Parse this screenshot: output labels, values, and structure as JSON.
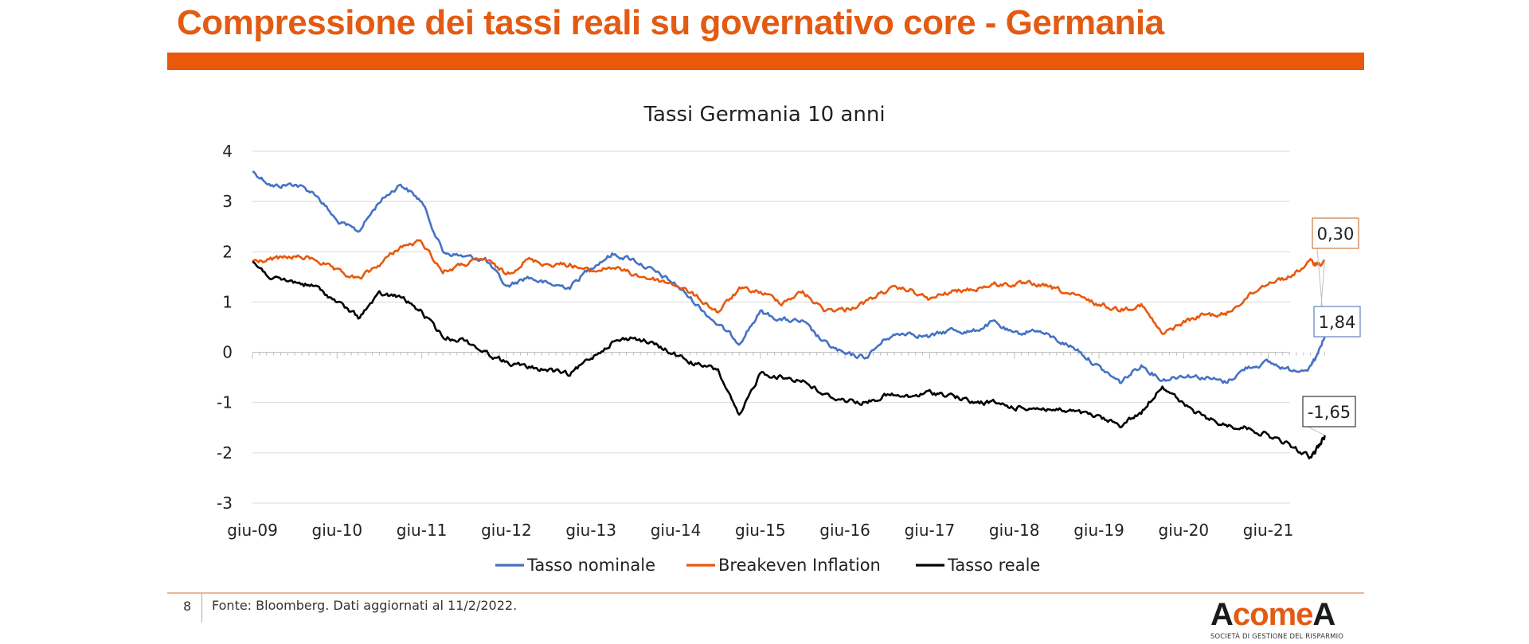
{
  "page": {
    "title": "Compressione dei tassi reali su governativo core - Germania",
    "page_number": "8",
    "source": "Fonte: Bloomberg. Dati aggiornati al 11/2/2022.",
    "logo": {
      "lead": "A",
      "middle": "come",
      "trail": "A",
      "subtitle": "SOCIETÀ DI GESTIONE DEL RISPARMIO"
    },
    "accent_color": "#e35b13"
  },
  "chart_data": {
    "type": "line",
    "title": "Tassi Germania 10 anni",
    "xlabel": "",
    "ylabel": "",
    "x_ticks": [
      "giu-09",
      "giu-10",
      "giu-11",
      "giu-12",
      "giu-13",
      "giu-14",
      "giu-15",
      "giu-16",
      "giu-17",
      "giu-18",
      "giu-19",
      "giu-20",
      "giu-21"
    ],
    "x_range": [
      "2009-06",
      "2022-02"
    ],
    "ylim": [
      -3,
      4
    ],
    "y_ticks": [
      "4",
      "3",
      "2",
      "1",
      "0",
      "-1",
      "-2",
      "-3"
    ],
    "grid": true,
    "legend_position": "bottom",
    "series": [
      {
        "name": "Tasso nominale",
        "color": "#4472c4",
        "end_label": "0,30",
        "points": [
          [
            "2009-06",
            3.6
          ],
          [
            "2009-09",
            3.3
          ],
          [
            "2009-12",
            3.35
          ],
          [
            "2010-03",
            3.15
          ],
          [
            "2010-06",
            2.6
          ],
          [
            "2010-09",
            2.4
          ],
          [
            "2010-12",
            3.0
          ],
          [
            "2011-03",
            3.35
          ],
          [
            "2011-06",
            3.0
          ],
          [
            "2011-09",
            2.0
          ],
          [
            "2011-12",
            1.9
          ],
          [
            "2012-03",
            1.85
          ],
          [
            "2012-06",
            1.3
          ],
          [
            "2012-09",
            1.5
          ],
          [
            "2012-12",
            1.35
          ],
          [
            "2013-03",
            1.3
          ],
          [
            "2013-06",
            1.7
          ],
          [
            "2013-09",
            1.95
          ],
          [
            "2013-12",
            1.85
          ],
          [
            "2014-03",
            1.6
          ],
          [
            "2014-06",
            1.35
          ],
          [
            "2014-09",
            0.95
          ],
          [
            "2014-12",
            0.55
          ],
          [
            "2015-03",
            0.2
          ],
          [
            "2015-06",
            0.8
          ],
          [
            "2015-09",
            0.65
          ],
          [
            "2015-12",
            0.6
          ],
          [
            "2016-03",
            0.2
          ],
          [
            "2016-06",
            -0.05
          ],
          [
            "2016-09",
            -0.1
          ],
          [
            "2016-12",
            0.3
          ],
          [
            "2017-03",
            0.4
          ],
          [
            "2017-06",
            0.3
          ],
          [
            "2017-09",
            0.45
          ],
          [
            "2017-12",
            0.4
          ],
          [
            "2018-03",
            0.6
          ],
          [
            "2018-06",
            0.35
          ],
          [
            "2018-09",
            0.45
          ],
          [
            "2018-12",
            0.25
          ],
          [
            "2019-03",
            0.05
          ],
          [
            "2019-06",
            -0.3
          ],
          [
            "2019-09",
            -0.6
          ],
          [
            "2019-12",
            -0.25
          ],
          [
            "2020-03",
            -0.55
          ],
          [
            "2020-06",
            -0.45
          ],
          [
            "2020-09",
            -0.5
          ],
          [
            "2020-12",
            -0.6
          ],
          [
            "2021-03",
            -0.3
          ],
          [
            "2021-06",
            -0.2
          ],
          [
            "2021-09",
            -0.35
          ],
          [
            "2021-12",
            -0.3
          ],
          [
            "2022-01",
            -0.05
          ],
          [
            "2022-02",
            0.3
          ]
        ]
      },
      {
        "name": "Breakeven Inflation",
        "color": "#e8590c",
        "end_label": "1,84",
        "points": [
          [
            "2009-06",
            1.8
          ],
          [
            "2009-09",
            1.85
          ],
          [
            "2009-12",
            1.9
          ],
          [
            "2010-03",
            1.85
          ],
          [
            "2010-06",
            1.6
          ],
          [
            "2010-09",
            1.45
          ],
          [
            "2010-12",
            1.75
          ],
          [
            "2011-03",
            2.1
          ],
          [
            "2011-06",
            2.2
          ],
          [
            "2011-09",
            1.6
          ],
          [
            "2011-12",
            1.75
          ],
          [
            "2012-03",
            1.85
          ],
          [
            "2012-06",
            1.55
          ],
          [
            "2012-09",
            1.85
          ],
          [
            "2012-12",
            1.75
          ],
          [
            "2013-03",
            1.75
          ],
          [
            "2013-06",
            1.6
          ],
          [
            "2013-09",
            1.7
          ],
          [
            "2013-12",
            1.55
          ],
          [
            "2014-03",
            1.45
          ],
          [
            "2014-06",
            1.35
          ],
          [
            "2014-09",
            1.1
          ],
          [
            "2014-12",
            0.8
          ],
          [
            "2015-03",
            1.25
          ],
          [
            "2015-06",
            1.2
          ],
          [
            "2015-09",
            1.0
          ],
          [
            "2015-12",
            1.2
          ],
          [
            "2016-03",
            0.85
          ],
          [
            "2016-06",
            0.85
          ],
          [
            "2016-09",
            1.0
          ],
          [
            "2016-12",
            1.25
          ],
          [
            "2017-03",
            1.25
          ],
          [
            "2017-06",
            1.05
          ],
          [
            "2017-09",
            1.2
          ],
          [
            "2017-12",
            1.25
          ],
          [
            "2018-03",
            1.35
          ],
          [
            "2018-06",
            1.35
          ],
          [
            "2018-09",
            1.35
          ],
          [
            "2018-12",
            1.25
          ],
          [
            "2019-03",
            1.1
          ],
          [
            "2019-06",
            0.95
          ],
          [
            "2019-09",
            0.85
          ],
          [
            "2019-12",
            0.95
          ],
          [
            "2020-03",
            0.35
          ],
          [
            "2020-06",
            0.6
          ],
          [
            "2020-09",
            0.75
          ],
          [
            "2020-12",
            0.75
          ],
          [
            "2021-03",
            1.1
          ],
          [
            "2021-06",
            1.4
          ],
          [
            "2021-09",
            1.5
          ],
          [
            "2021-12",
            1.8
          ],
          [
            "2022-01",
            1.75
          ],
          [
            "2022-02",
            1.84
          ]
        ]
      },
      {
        "name": "Tasso reale",
        "color": "#000000",
        "end_label": "-1,65",
        "points": [
          [
            "2009-06",
            1.8
          ],
          [
            "2009-09",
            1.45
          ],
          [
            "2009-12",
            1.4
          ],
          [
            "2010-03",
            1.3
          ],
          [
            "2010-06",
            1.0
          ],
          [
            "2010-09",
            0.7
          ],
          [
            "2010-12",
            1.15
          ],
          [
            "2011-03",
            1.1
          ],
          [
            "2011-06",
            0.8
          ],
          [
            "2011-09",
            0.3
          ],
          [
            "2011-12",
            0.25
          ],
          [
            "2012-03",
            0.0
          ],
          [
            "2012-06",
            -0.2
          ],
          [
            "2012-09",
            -0.3
          ],
          [
            "2012-12",
            -0.35
          ],
          [
            "2013-03",
            -0.45
          ],
          [
            "2013-06",
            -0.1
          ],
          [
            "2013-09",
            0.2
          ],
          [
            "2013-12",
            0.3
          ],
          [
            "2014-03",
            0.15
          ],
          [
            "2014-06",
            -0.05
          ],
          [
            "2014-09",
            -0.25
          ],
          [
            "2014-12",
            -0.35
          ],
          [
            "2015-03",
            -1.3
          ],
          [
            "2015-06",
            -0.4
          ],
          [
            "2015-09",
            -0.5
          ],
          [
            "2015-12",
            -0.55
          ],
          [
            "2016-03",
            -0.85
          ],
          [
            "2016-06",
            -0.95
          ],
          [
            "2016-09",
            -1.0
          ],
          [
            "2016-12",
            -0.85
          ],
          [
            "2017-03",
            -0.9
          ],
          [
            "2017-06",
            -0.8
          ],
          [
            "2017-09",
            -0.85
          ],
          [
            "2017-12",
            -1.0
          ],
          [
            "2018-03",
            -1.0
          ],
          [
            "2018-06",
            -1.1
          ],
          [
            "2018-09",
            -1.1
          ],
          [
            "2018-12",
            -1.15
          ],
          [
            "2019-03",
            -1.2
          ],
          [
            "2019-06",
            -1.3
          ],
          [
            "2019-09",
            -1.45
          ],
          [
            "2019-12",
            -1.2
          ],
          [
            "2020-03",
            -0.65
          ],
          [
            "2020-06",
            -1.05
          ],
          [
            "2020-09",
            -1.3
          ],
          [
            "2020-12",
            -1.45
          ],
          [
            "2021-03",
            -1.5
          ],
          [
            "2021-06",
            -1.65
          ],
          [
            "2021-09",
            -1.85
          ],
          [
            "2021-12",
            -2.1
          ],
          [
            "2022-01",
            -1.9
          ],
          [
            "2022-02",
            -1.65
          ]
        ]
      }
    ]
  }
}
